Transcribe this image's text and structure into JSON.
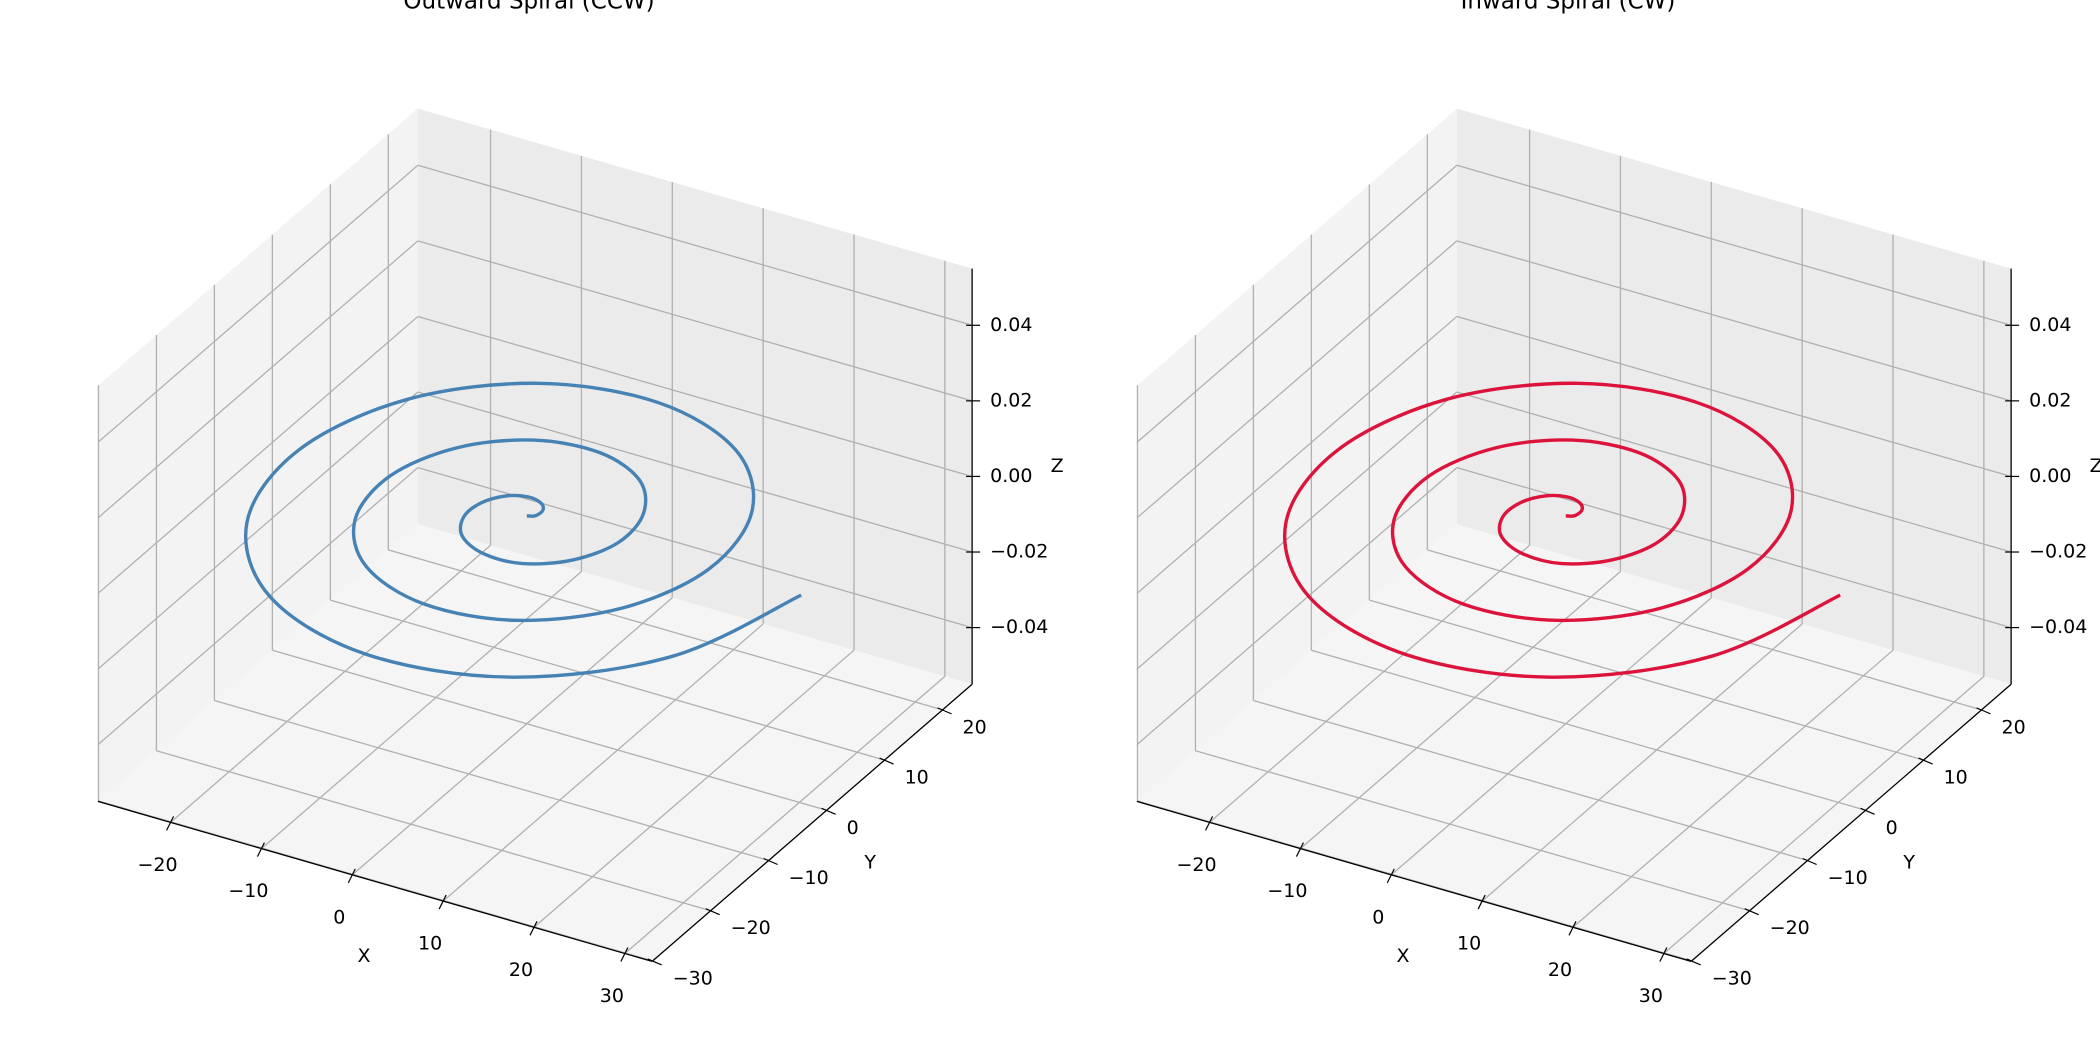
{
  "chart_data": [
    {
      "type": "line3d",
      "title": "Outward Spiral (CCW)",
      "xlabel": "X",
      "ylabel": "Y",
      "zlabel": "Z",
      "color": "#4682b4",
      "grid": true,
      "x": [
        0,
        0.7,
        0.8,
        0,
        -1.7,
        -3.6,
        -5.0,
        -5.1,
        -3.4,
        0,
        4.2,
        8.0,
        10.1,
        9.4,
        5.9,
        0,
        -6.7,
        -12.3,
        -15.1,
        -13.8,
        -8.4,
        0,
        9.2,
        16.7,
        20.1,
        18.1,
        10.9,
        0,
        -11.7,
        -21.0,
        -25.1,
        -22.5,
        -13.4,
        0,
        14.2,
        25.4,
        30.2
      ],
      "y": [
        0,
        0.4,
        1.5,
        2.5,
        2.9,
        2.1,
        0,
        -2.9,
        -5.8,
        -7.5,
        -7.3,
        -4.6,
        0,
        5.4,
        10.2,
        12.6,
        11.6,
        7.1,
        0,
        -8.0,
        -14.5,
        -17.6,
        -16.0,
        -9.6,
        0,
        10.5,
        18.9,
        22.6,
        20.3,
        12.2,
        0,
        -13.0,
        -23.2,
        -27.6,
        -24.7,
        -14.7,
        0
      ],
      "z": [
        0,
        0,
        0,
        0,
        0,
        0,
        0,
        0,
        0,
        0,
        0,
        0,
        0,
        0,
        0,
        0,
        0,
        0,
        0,
        0,
        0,
        0,
        0,
        0,
        0,
        0,
        0,
        0,
        0,
        0,
        0,
        0,
        0,
        0,
        0,
        0,
        0
      ],
      "xlim": [
        -28,
        33
      ],
      "ylim": [
        -30.1,
        25.1
      ],
      "zlim": [
        -0.055,
        0.055
      ],
      "xticks": [
        {
          "value": -20,
          "label": "−20"
        },
        {
          "value": -10,
          "label": "−10"
        },
        0,
        10,
        20,
        30
      ],
      "yticks": [
        {
          "value": -30,
          "label": "−30"
        },
        {
          "value": -20,
          "label": "−20"
        },
        {
          "value": -10,
          "label": "−10"
        },
        0,
        10,
        20
      ],
      "zticks": [
        {
          "value": -0.04,
          "label": "−0.04"
        },
        {
          "value": -0.02,
          "label": "−0.02"
        },
        {
          "value": 0,
          "label": "0.00"
        },
        0.02,
        0.04
      ]
    },
    {
      "type": "line3d",
      "title": "Inward Spiral (CW)",
      "xlabel": "X",
      "ylabel": "Y",
      "zlabel": "Z",
      "color": "#dc143c",
      "grid": true,
      "x": [
        30.2,
        25.4,
        14.2,
        0,
        -13.4,
        -22.5,
        -25.1,
        -21.0,
        -11.7,
        0,
        10.9,
        18.1,
        20.1,
        16.7,
        9.2,
        0,
        -8.4,
        -13.8,
        -15.1,
        -12.3,
        -6.7,
        0,
        5.9,
        9.4,
        10.1,
        8.0,
        4.2,
        0,
        -3.4,
        -5.1,
        -5.0,
        -3.6,
        -1.7,
        0,
        0.8,
        0.7,
        0
      ],
      "y": [
        0,
        -14.7,
        -24.7,
        -27.6,
        -23.2,
        -13.0,
        0,
        12.2,
        20.3,
        22.6,
        18.9,
        10.5,
        0,
        -9.6,
        -16.0,
        -17.6,
        -14.5,
        -8.0,
        0,
        7.1,
        11.6,
        12.6,
        10.2,
        5.4,
        0,
        -4.6,
        -7.3,
        -7.5,
        -5.8,
        -2.9,
        0,
        2.1,
        2.9,
        2.5,
        1.5,
        0.4,
        0
      ],
      "z": [
        0,
        0,
        0,
        0,
        0,
        0,
        0,
        0,
        0,
        0,
        0,
        0,
        0,
        0,
        0,
        0,
        0,
        0,
        0,
        0,
        0,
        0,
        0,
        0,
        0,
        0,
        0,
        0,
        0,
        0,
        0,
        0,
        0,
        0,
        0,
        0,
        0
      ],
      "xlim": [
        -28,
        33
      ],
      "ylim": [
        -30.1,
        25.1
      ],
      "zlim": [
        -0.055,
        0.055
      ],
      "xticks": [
        {
          "value": -20,
          "label": "−20"
        },
        {
          "value": -10,
          "label": "−10"
        },
        0,
        10,
        20,
        30
      ],
      "yticks": [
        {
          "value": -30,
          "label": "−30"
        },
        {
          "value": -20,
          "label": "−20"
        },
        {
          "value": -10,
          "label": "−10"
        },
        0,
        10,
        20
      ],
      "zticks": [
        {
          "value": -0.04,
          "label": "−0.04"
        },
        {
          "value": -0.02,
          "label": "−0.02"
        },
        {
          "value": 0,
          "label": "0.00"
        },
        0.02,
        0.04
      ]
    }
  ]
}
